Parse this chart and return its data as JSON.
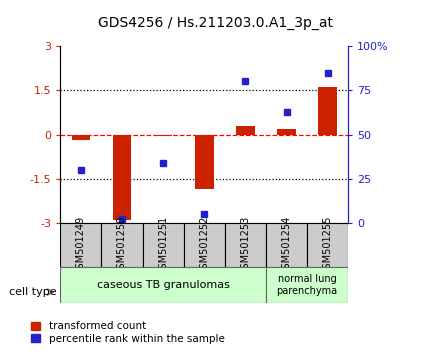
{
  "title": "GDS4256 / Hs.211203.0.A1_3p_at",
  "samples": [
    "GSM501249",
    "GSM501250",
    "GSM501251",
    "GSM501252",
    "GSM501253",
    "GSM501254",
    "GSM501255"
  ],
  "transformed_counts": [
    -0.2,
    -2.9,
    -0.05,
    -1.85,
    0.3,
    0.2,
    1.6
  ],
  "percentile_ranks": [
    30,
    2,
    34,
    5,
    80,
    63,
    85
  ],
  "ylim_left": [
    -3,
    3
  ],
  "ylim_right": [
    0,
    100
  ],
  "yticks_left": [
    -3,
    -1.5,
    0,
    1.5,
    3
  ],
  "yticks_right": [
    0,
    25,
    50,
    75,
    100
  ],
  "ytick_labels_left": [
    "-3",
    "-1.5",
    "0",
    "1.5",
    "3"
  ],
  "ytick_labels_right": [
    "0",
    "25",
    "50",
    "75",
    "100%"
  ],
  "bar_color": "#cc2200",
  "dot_color": "#2222cc",
  "group1_n": 5,
  "group1_label": "caseous TB granulomas",
  "group2_n": 2,
  "group2_label": "normal lung\nparenchyma",
  "group_bg_color": "#ccffcc",
  "sample_bg_color": "#cccccc",
  "legend_bar_label": "transformed count",
  "legend_dot_label": "percentile rank within the sample",
  "cell_type_label": "cell type"
}
